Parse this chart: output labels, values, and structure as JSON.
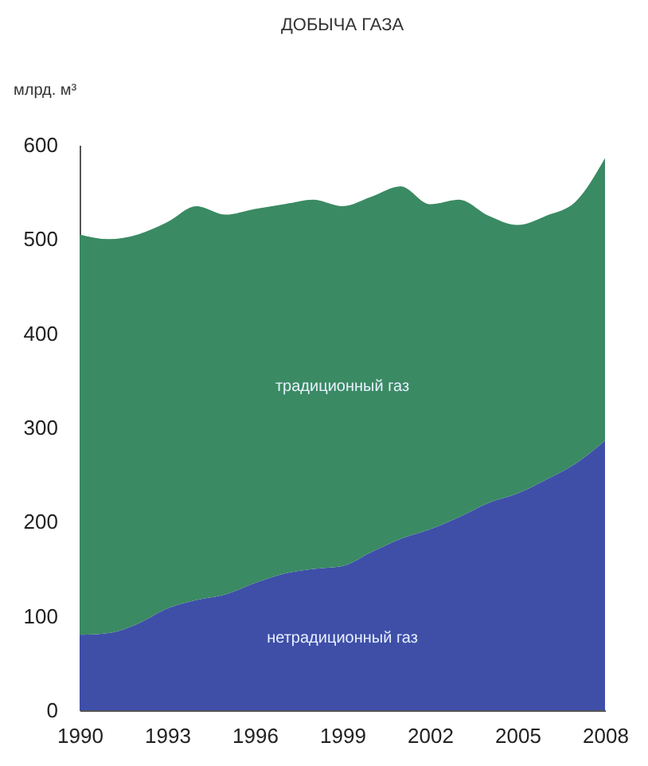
{
  "chart_data": {
    "type": "area",
    "title": "ДОБЫЧА ГАЗА",
    "ylabel": "млрд. м³",
    "stacked": true,
    "x": [
      1990,
      1991,
      1992,
      1993,
      1994,
      1995,
      1996,
      1997,
      1998,
      1999,
      2000,
      2001,
      2002,
      2003,
      2004,
      2005,
      2006,
      2007,
      2008
    ],
    "series": [
      {
        "name": "нетрадиционный газ",
        "color": "#3f4fa8",
        "values": [
          80,
          82,
          92,
          108,
          117,
          123,
          135,
          145,
          150,
          153,
          168,
          182,
          192,
          205,
          220,
          230,
          245,
          262,
          286
        ]
      },
      {
        "name": "традиционный газ",
        "color": "#3a8a63",
        "values": [
          425,
          418,
          413,
          410,
          418,
          403,
          397,
          392,
          392,
          382,
          377,
          374,
          345,
          337,
          305,
          285,
          280,
          278,
          300
        ]
      }
    ],
    "xlim": [
      1990,
      2008
    ],
    "xticks": [
      1990,
      1993,
      1996,
      1999,
      2002,
      2005,
      2008
    ],
    "ylim": [
      0,
      600
    ],
    "yticks": [
      0,
      100,
      200,
      300,
      400,
      500,
      600
    ],
    "grid": false
  }
}
